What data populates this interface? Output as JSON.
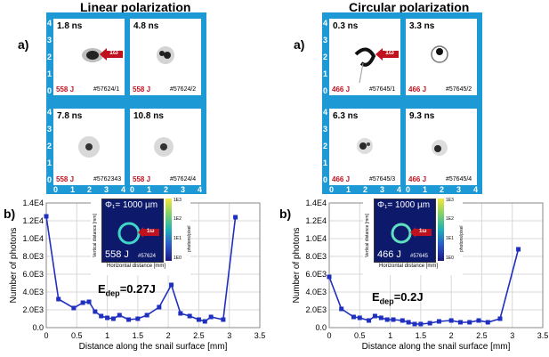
{
  "left": {
    "title": "Linear polarization",
    "label_a": "a)",
    "label_b": "b)",
    "panels": [
      {
        "time": "1.8 ns",
        "energy": "558 J",
        "shot": "#57624/1",
        "arrow_label": "1ω"
      },
      {
        "time": "4.8 ns",
        "energy": "558 J",
        "shot": "#57624/2"
      },
      {
        "time": "7.8 ns",
        "energy": "558 J",
        "shot": "#5762343"
      },
      {
        "time": "10.8 ns",
        "energy": "558 J",
        "shot": "#57624/4"
      }
    ],
    "frame_ticks_x": [
      "0",
      "1",
      "2",
      "3",
      "4",
      "0",
      "1",
      "2",
      "3",
      "4"
    ],
    "frame_ticks_y": [
      "0",
      "1",
      "2",
      "3",
      "4",
      "0",
      "1",
      "2",
      "3",
      "4"
    ],
    "inset": {
      "phi": "Φ₁= 1000 µm",
      "energy": "558 J",
      "shot": "#57624",
      "arrow_label": "1ω",
      "xlabel": "Horizontal distance [mm]",
      "ylabel": "Vertical distance [mm]",
      "cbar_label": "photons/pixel",
      "cbar_ticks": [
        "1E3",
        "1E2",
        "1E1",
        "1E0"
      ]
    },
    "edep": "E",
    "edep_sub": "dep",
    "edep_val": "=0.27J"
  },
  "right": {
    "title": "Circular polarization",
    "label_a": "a)",
    "label_b": "b)",
    "panels": [
      {
        "time": "0.3 ns",
        "energy": "466 J",
        "shot": "#57645/1",
        "arrow_label": "1ω"
      },
      {
        "time": "3.3 ns",
        "energy": "466 J",
        "shot": "#57645/2"
      },
      {
        "time": "6.3 ns",
        "energy": "466 J",
        "shot": "#57645/3"
      },
      {
        "time": "9.3 ns",
        "energy": "466 J",
        "shot": "#57645/4"
      }
    ],
    "frame_ticks_x": [
      "0",
      "1",
      "2",
      "3",
      "4",
      "0",
      "1",
      "2",
      "3",
      "4"
    ],
    "frame_ticks_y": [
      "0",
      "1",
      "2",
      "3",
      "4",
      "0",
      "1",
      "2",
      "3",
      "4"
    ],
    "inset": {
      "phi": "Φ₁= 1000 µm",
      "energy": "466 J",
      "shot": "#57645",
      "arrow_label": "1ω",
      "xlabel": "Horizontal distance [mm]",
      "ylabel": "Vertical distance [mm]",
      "cbar_label": "photons/pixel",
      "cbar_ticks": [
        "1E3",
        "1E2",
        "1E1",
        "1E0"
      ]
    },
    "edep": "E",
    "edep_sub": "dep",
    "edep_val": "=0.2J"
  },
  "chart_data": [
    {
      "type": "line",
      "xlabel": "Distance along the snail surface [mm]",
      "ylabel": "Number of photons",
      "xlim": [
        0,
        3.5
      ],
      "ylim": [
        0,
        14000
      ],
      "xticks": [
        "0",
        "0.5",
        "1",
        "1.5",
        "2",
        "2.5",
        "3",
        "3.5"
      ],
      "yticks": [
        "0.0",
        "2.0E3",
        "4.0E3",
        "6.0E3",
        "8.0E3",
        "1.0E4",
        "1.2E4",
        "1.4E4"
      ],
      "grid": true,
      "color": "#1f2fbf",
      "x": [
        0.0,
        0.2,
        0.45,
        0.6,
        0.7,
        0.8,
        0.9,
        1.0,
        1.1,
        1.2,
        1.35,
        1.5,
        1.65,
        1.85,
        2.05,
        2.2,
        2.35,
        2.5,
        2.6,
        2.7,
        2.9,
        3.1
      ],
      "y": [
        12500,
        3200,
        2200,
        2800,
        2900,
        1800,
        1300,
        1100,
        1000,
        1400,
        900,
        1000,
        1400,
        2300,
        4800,
        1600,
        1300,
        900,
        700,
        1200,
        900,
        12400
      ]
    },
    {
      "type": "line",
      "xlabel": "Distance along the snail surface [mm]",
      "ylabel": "Number of photons",
      "xlim": [
        0,
        3.5
      ],
      "ylim": [
        0,
        14000
      ],
      "xticks": [
        "0",
        "0.5",
        "1",
        "1.5",
        "2",
        "2.5",
        "3",
        "3.5"
      ],
      "yticks": [
        "0.0",
        "2.0E3",
        "4.0E3",
        "6.0E3",
        "8.0E3",
        "1.0E4",
        "1.2E4",
        "1.4E4"
      ],
      "grid": true,
      "color": "#1f2fbf",
      "x": [
        0.0,
        0.2,
        0.4,
        0.5,
        0.65,
        0.75,
        0.85,
        0.95,
        1.05,
        1.2,
        1.3,
        1.4,
        1.5,
        1.65,
        1.8,
        2.0,
        2.15,
        2.3,
        2.45,
        2.6,
        2.8,
        3.1
      ],
      "y": [
        5700,
        2100,
        1200,
        1100,
        800,
        1300,
        1100,
        900,
        900,
        800,
        600,
        400,
        400,
        500,
        700,
        800,
        600,
        600,
        800,
        600,
        1000,
        8800
      ]
    }
  ]
}
